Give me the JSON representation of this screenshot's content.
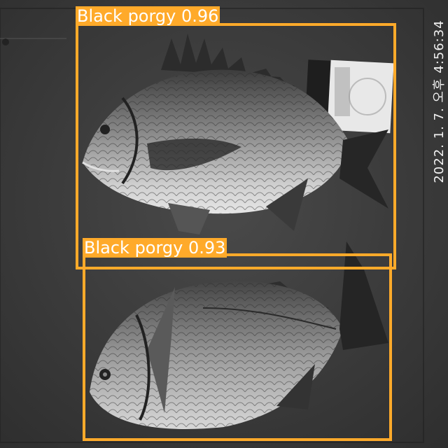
{
  "photo": {
    "subject": "two black porgy fish on a tray next to a cigarette pack",
    "timestamp": "2022. 1. 7. 오후 4:56:34"
  },
  "detections": [
    {
      "label": "Black porgy 0.96",
      "class": "Black porgy",
      "confidence": 0.96
    },
    {
      "label": "Black porgy 0.93",
      "class": "Black porgy",
      "confidence": 0.93
    }
  ],
  "colors": {
    "box": "#ffaa2a",
    "label_text": "#ffffff"
  }
}
